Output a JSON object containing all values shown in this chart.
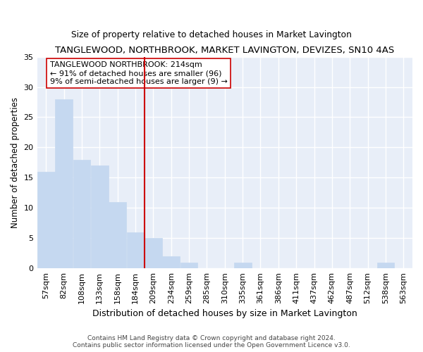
{
  "title": "TANGLEWOOD, NORTHBROOK, MARKET LAVINGTON, DEVIZES, SN10 4AS",
  "subtitle": "Size of property relative to detached houses in Market Lavington",
  "xlabel": "Distribution of detached houses by size in Market Lavington",
  "ylabel": "Number of detached properties",
  "categories": [
    "57sqm",
    "82sqm",
    "108sqm",
    "133sqm",
    "158sqm",
    "184sqm",
    "209sqm",
    "234sqm",
    "259sqm",
    "285sqm",
    "310sqm",
    "335sqm",
    "361sqm",
    "386sqm",
    "411sqm",
    "437sqm",
    "462sqm",
    "487sqm",
    "512sqm",
    "538sqm",
    "563sqm"
  ],
  "values": [
    16,
    28,
    18,
    17,
    11,
    6,
    5,
    2,
    1,
    0,
    0,
    1,
    0,
    0,
    0,
    0,
    0,
    0,
    0,
    1,
    0
  ],
  "bar_color": "#c5d8f0",
  "bar_edge_color": "#c5d8f0",
  "vline_x_index": 6,
  "vline_color": "#cc0000",
  "annotation_text": "TANGLEWOOD NORTHBROOK: 214sqm\n← 91% of detached houses are smaller (96)\n9% of semi-detached houses are larger (9) →",
  "annotation_box_color": "#ffffff",
  "annotation_box_edge": "#cc0000",
  "ylim": [
    0,
    35
  ],
  "yticks": [
    0,
    5,
    10,
    15,
    20,
    25,
    30,
    35
  ],
  "fig_background": "#ffffff",
  "axes_background": "#e8eef8",
  "grid_color": "#ffffff",
  "footer": "Contains HM Land Registry data © Crown copyright and database right 2024.\nContains public sector information licensed under the Open Government Licence v3.0."
}
